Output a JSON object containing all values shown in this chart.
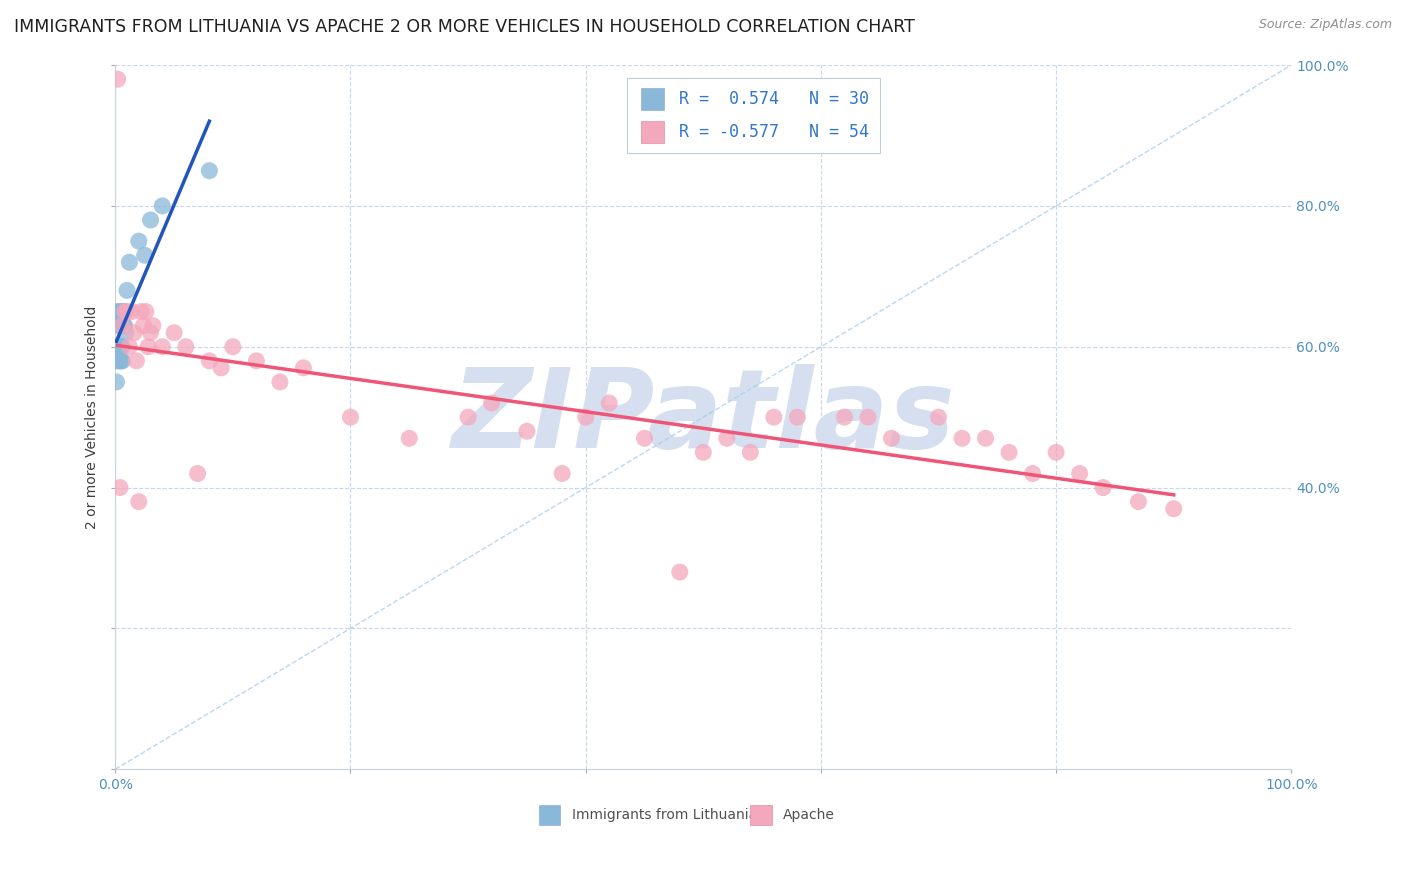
{
  "title": "IMMIGRANTS FROM LITHUANIA VS APACHE 2 OR MORE VEHICLES IN HOUSEHOLD CORRELATION CHART",
  "source": "Source: ZipAtlas.com",
  "ylabel": "2 or more Vehicles in Household",
  "xlim": [
    0.0,
    1.0
  ],
  "ylim": [
    0.0,
    1.0
  ],
  "legend1_label": "Immigrants from Lithuania",
  "legend2_label": "Apache",
  "blue_color": "#8ab8d8",
  "pink_color": "#f4a8bc",
  "blue_line_color": "#2255bb",
  "pink_line_color": "#ee5577",
  "watermark_color": "#d5dff0",
  "watermark_text": "ZIPatlas",
  "blue_scatter_x": [
    0.001,
    0.001,
    0.002,
    0.002,
    0.003,
    0.003,
    0.003,
    0.004,
    0.004,
    0.004,
    0.005,
    0.005,
    0.005,
    0.005,
    0.006,
    0.006,
    0.006,
    0.006,
    0.007,
    0.007,
    0.008,
    0.008,
    0.009,
    0.01,
    0.012,
    0.02,
    0.025,
    0.03,
    0.04,
    0.08
  ],
  "blue_scatter_y": [
    0.58,
    0.55,
    0.65,
    0.6,
    0.63,
    0.6,
    0.58,
    0.65,
    0.6,
    0.58,
    0.63,
    0.6,
    0.58,
    0.63,
    0.65,
    0.63,
    0.6,
    0.58,
    0.65,
    0.63,
    0.65,
    0.63,
    0.62,
    0.68,
    0.72,
    0.75,
    0.73,
    0.78,
    0.8,
    0.85
  ],
  "pink_scatter_x": [
    0.002,
    0.004,
    0.006,
    0.008,
    0.01,
    0.012,
    0.014,
    0.016,
    0.018,
    0.02,
    0.022,
    0.024,
    0.026,
    0.028,
    0.03,
    0.032,
    0.04,
    0.05,
    0.06,
    0.07,
    0.08,
    0.09,
    0.1,
    0.12,
    0.14,
    0.16,
    0.2,
    0.25,
    0.3,
    0.32,
    0.35,
    0.38,
    0.4,
    0.42,
    0.45,
    0.48,
    0.5,
    0.52,
    0.54,
    0.56,
    0.58,
    0.62,
    0.64,
    0.66,
    0.7,
    0.72,
    0.74,
    0.76,
    0.78,
    0.8,
    0.82,
    0.84,
    0.87,
    0.9
  ],
  "pink_scatter_y": [
    0.98,
    0.4,
    0.63,
    0.65,
    0.65,
    0.6,
    0.65,
    0.62,
    0.58,
    0.38,
    0.65,
    0.63,
    0.65,
    0.6,
    0.62,
    0.63,
    0.6,
    0.62,
    0.6,
    0.42,
    0.58,
    0.57,
    0.6,
    0.58,
    0.55,
    0.57,
    0.5,
    0.47,
    0.5,
    0.52,
    0.48,
    0.42,
    0.5,
    0.52,
    0.47,
    0.28,
    0.45,
    0.47,
    0.45,
    0.5,
    0.5,
    0.5,
    0.5,
    0.47,
    0.5,
    0.47,
    0.47,
    0.45,
    0.42,
    0.45,
    0.42,
    0.4,
    0.38,
    0.37
  ],
  "background_color": "#ffffff",
  "grid_color": "#c8d8ea",
  "title_fontsize": 12.5,
  "ylabel_fontsize": 10,
  "tick_fontsize": 10,
  "legend_fontsize": 12,
  "source_fontsize": 9
}
